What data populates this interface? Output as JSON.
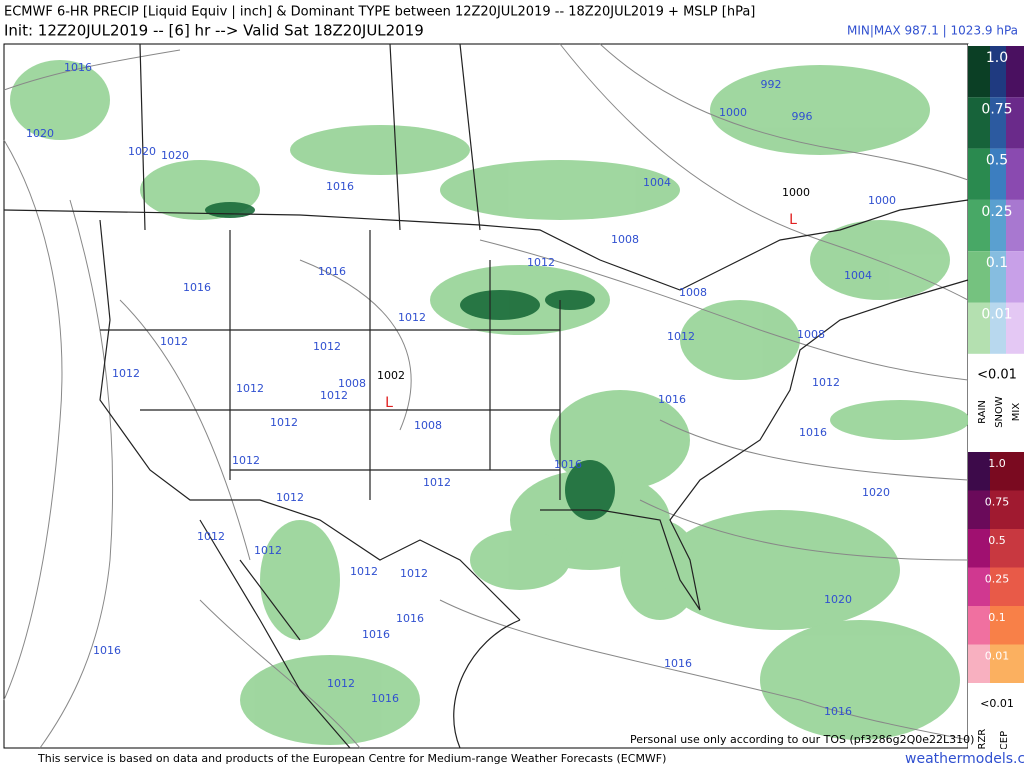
{
  "header": {
    "title": "ECMWF 6-HR PRECIP [Liquid Equiv | inch] & Dominant TYPE between 12Z20JUL2019 -- 18Z20JUL2019 + MSLP [hPa]",
    "subtitle": "Init: 12Z20JUL2019 -- [6] hr --> Valid Sat 18Z20JUL2019",
    "minmax": "MIN|MAX 987.1 | 1023.9 hPa"
  },
  "legend": {
    "precip": {
      "levels": [
        "1.0",
        "0.75",
        "0.5",
        "0.25",
        "0.1",
        "0.01"
      ],
      "min_label": "<0.01",
      "types": [
        "RAIN",
        "SNOW",
        "MIX"
      ]
    },
    "ice": {
      "levels": [
        "1.0",
        "0.75",
        "0.5",
        "0.25",
        "0.1",
        "0.01"
      ],
      "min_label": "<0.01",
      "types": [
        "FRZR",
        "ICEP"
      ]
    }
  },
  "map": {
    "isobar_labels": [
      1016,
      1020,
      1020,
      1020,
      1016,
      992,
      1000,
      996,
      1004,
      1000,
      1008,
      1012,
      1016,
      1016,
      1004,
      1008,
      1012,
      1012,
      1008,
      1012,
      1012,
      1012,
      1008,
      1012,
      1012,
      1012,
      1016,
      1012,
      1008,
      1016,
      1012,
      1016,
      1012,
      1020,
      1012,
      1012,
      1012,
      1012,
      1012,
      1020,
      1016,
      1016,
      1016,
      1016,
      1012,
      1016,
      1016
    ],
    "lows": [
      {
        "pressure": 1000,
        "mark": "L"
      },
      {
        "pressure": 1002,
        "mark": "L"
      }
    ]
  },
  "footer": {
    "source": "This service is based on data and products of the European Centre for Medium-range Weather Forecasts (ECMWF)",
    "tos": "Personal use only according to our TOS (pf3286g2Q0e22L310)",
    "site": "weathermodels.com"
  }
}
